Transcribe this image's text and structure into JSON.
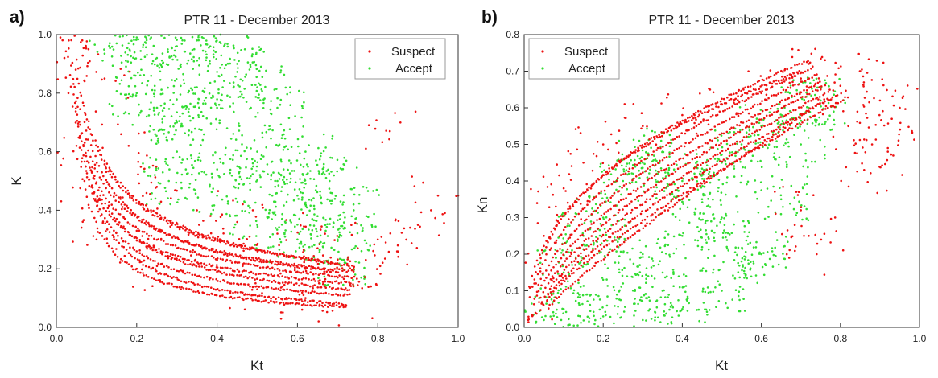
{
  "chart_data": [
    {
      "panel_label": "a)",
      "type": "scatter",
      "title": "PTR 11 - December 2013",
      "xlabel": "Kt",
      "ylabel": "K",
      "xlim": [
        0.0,
        1.0
      ],
      "ylim": [
        0.0,
        1.0
      ],
      "xticks": [
        "0.0",
        "0.2",
        "0.4",
        "0.6",
        "0.8",
        "1.0"
      ],
      "yticks": [
        "0.0",
        "0.2",
        "0.4",
        "0.6",
        "0.8",
        "1.0"
      ],
      "grid": false,
      "legend_position": "top-right",
      "series": [
        {
          "name": "Suspect",
          "color": "#ee1111",
          "points": [
            [
              0.01,
              0.99
            ],
            [
              0.02,
              0.92
            ],
            [
              0.03,
              0.8
            ],
            [
              0.05,
              0.62
            ],
            [
              0.07,
              0.5
            ],
            [
              0.1,
              0.43
            ],
            [
              0.15,
              0.37
            ],
            [
              0.2,
              0.33
            ],
            [
              0.3,
              0.27
            ],
            [
              0.4,
              0.23
            ],
            [
              0.5,
              0.21
            ],
            [
              0.6,
              0.19
            ],
            [
              0.7,
              0.17
            ],
            [
              0.74,
              0.2
            ],
            [
              0.75,
              0.27
            ],
            [
              0.8,
              0.3
            ],
            [
              0.85,
              0.28
            ],
            [
              0.9,
              0.35
            ],
            [
              0.95,
              0.45
            ],
            [
              0.83,
              0.67
            ],
            [
              0.08,
              0.95
            ],
            [
              0.12,
              0.85
            ],
            [
              0.18,
              0.62
            ],
            [
              0.25,
              0.48
            ],
            [
              0.35,
              0.4
            ],
            [
              0.45,
              0.36
            ],
            [
              0.55,
              0.32
            ],
            [
              0.65,
              0.27
            ],
            [
              0.1,
              0.3
            ],
            [
              0.2,
              0.2
            ],
            [
              0.3,
              0.17
            ],
            [
              0.5,
              0.13
            ],
            [
              0.62,
              0.1
            ],
            [
              0.72,
              0.07
            ]
          ],
          "curves": [
            {
              "x0": 0.03,
              "x1": 0.74,
              "y_at_x0": 0.95,
              "y_at_x1": 0.17,
              "p": 0.55
            },
            {
              "x0": 0.03,
              "x1": 0.74,
              "y_at_x0": 0.92,
              "y_at_x1": 0.15,
              "p": 0.62
            },
            {
              "x0": 0.04,
              "x1": 0.73,
              "y_at_x0": 0.9,
              "y_at_x1": 0.13,
              "p": 0.7
            },
            {
              "x0": 0.04,
              "x1": 0.73,
              "y_at_x0": 0.85,
              "y_at_x1": 0.11,
              "p": 0.78
            },
            {
              "x0": 0.05,
              "x1": 0.72,
              "y_at_x0": 0.75,
              "y_at_x1": 0.08,
              "p": 0.85
            },
            {
              "x0": 0.06,
              "x1": 0.72,
              "y_at_x0": 0.55,
              "y_at_x1": 0.07,
              "p": 0.9
            },
            {
              "x0": 0.03,
              "x1": 0.74,
              "y_at_x0": 0.98,
              "y_at_x1": 0.19,
              "p": 0.5
            },
            {
              "x0": 0.05,
              "x1": 0.74,
              "y_at_x0": 0.88,
              "y_at_x1": 0.21,
              "p": 0.45
            },
            {
              "x0": 0.07,
              "x1": 0.7,
              "y_at_x0": 0.7,
              "y_at_x1": 0.19,
              "p": 0.6
            },
            {
              "x0": 0.06,
              "x1": 0.7,
              "y_at_x0": 0.8,
              "y_at_x1": 0.22,
              "p": 0.52
            }
          ]
        },
        {
          "name": "Accept",
          "color": "#33dd33",
          "points": [
            [
              0.15,
              0.97
            ],
            [
              0.2,
              0.99
            ],
            [
              0.25,
              0.92
            ],
            [
              0.3,
              0.96
            ],
            [
              0.35,
              0.98
            ],
            [
              0.2,
              0.8
            ],
            [
              0.25,
              0.75
            ],
            [
              0.3,
              0.7
            ],
            [
              0.35,
              0.82
            ],
            [
              0.4,
              0.75
            ],
            [
              0.45,
              0.55
            ],
            [
              0.5,
              0.6
            ],
            [
              0.55,
              0.5
            ],
            [
              0.6,
              0.45
            ],
            [
              0.65,
              0.38
            ],
            [
              0.7,
              0.3
            ],
            [
              0.72,
              0.22
            ],
            [
              0.4,
              0.45
            ],
            [
              0.5,
              0.35
            ],
            [
              0.6,
              0.3
            ],
            [
              0.3,
              0.6
            ],
            [
              0.28,
              0.5
            ],
            [
              0.55,
              0.75
            ],
            [
              0.5,
              0.82
            ],
            [
              0.45,
              0.9
            ],
            [
              0.42,
              0.97
            ],
            [
              0.62,
              0.6
            ],
            [
              0.68,
              0.5
            ],
            [
              0.74,
              0.4
            ]
          ]
        }
      ]
    },
    {
      "panel_label": "b)",
      "type": "scatter",
      "title": "PTR 11 - December 2013",
      "xlabel": "Kt",
      "ylabel": "Kn",
      "xlim": [
        0.0,
        1.0
      ],
      "ylim": [
        0.0,
        0.8
      ],
      "xticks": [
        "0.0",
        "0.2",
        "0.4",
        "0.6",
        "0.8",
        "1.0"
      ],
      "yticks": [
        "0.0",
        "0.1",
        "0.2",
        "0.3",
        "0.4",
        "0.5",
        "0.6",
        "0.7",
        "0.8"
      ],
      "grid": false,
      "legend_position": "top-left",
      "series": [
        {
          "name": "Suspect",
          "color": "#ee1111",
          "points": [
            [
              0.01,
              0.02
            ],
            [
              0.03,
              0.12
            ],
            [
              0.05,
              0.25
            ],
            [
              0.08,
              0.33
            ],
            [
              0.1,
              0.38
            ],
            [
              0.15,
              0.45
            ],
            [
              0.2,
              0.5
            ],
            [
              0.3,
              0.55
            ],
            [
              0.4,
              0.58
            ],
            [
              0.5,
              0.61
            ],
            [
              0.6,
              0.64
            ],
            [
              0.7,
              0.68
            ],
            [
              0.72,
              0.72
            ],
            [
              0.75,
              0.65
            ],
            [
              0.8,
              0.66
            ],
            [
              0.85,
              0.7
            ],
            [
              0.9,
              0.62
            ],
            [
              0.93,
              0.57
            ],
            [
              0.95,
              0.6
            ],
            [
              0.88,
              0.5
            ],
            [
              0.92,
              0.48
            ],
            [
              0.82,
              0.55
            ],
            [
              0.86,
              0.43
            ],
            [
              0.72,
              0.25
            ],
            [
              0.74,
              0.2
            ],
            [
              0.7,
              0.32
            ]
          ],
          "curves": [
            {
              "x0": 0.01,
              "x1": 0.72,
              "y_at_x0": 0.03,
              "y_at_x1": 0.73,
              "p": 0.45
            },
            {
              "x0": 0.01,
              "x1": 0.73,
              "y_at_x0": 0.02,
              "y_at_x1": 0.71,
              "p": 0.5
            },
            {
              "x0": 0.02,
              "x1": 0.74,
              "y_at_x0": 0.03,
              "y_at_x1": 0.69,
              "p": 0.55
            },
            {
              "x0": 0.02,
              "x1": 0.75,
              "y_at_x0": 0.03,
              "y_at_x1": 0.67,
              "p": 0.6
            },
            {
              "x0": 0.03,
              "x1": 0.76,
              "y_at_x0": 0.04,
              "y_at_x1": 0.66,
              "p": 0.65
            },
            {
              "x0": 0.04,
              "x1": 0.78,
              "y_at_x0": 0.05,
              "y_at_x1": 0.65,
              "p": 0.7
            },
            {
              "x0": 0.05,
              "x1": 0.8,
              "y_at_x0": 0.06,
              "y_at_x1": 0.64,
              "p": 0.75
            },
            {
              "x0": 0.05,
              "x1": 0.82,
              "y_at_x0": 0.06,
              "y_at_x1": 0.63,
              "p": 0.8
            },
            {
              "x0": 0.06,
              "x1": 0.76,
              "y_at_x0": 0.05,
              "y_at_x1": 0.62,
              "p": 0.88
            },
            {
              "x0": 0.02,
              "x1": 0.7,
              "y_at_x0": 0.03,
              "y_at_x1": 0.7,
              "p": 0.42
            }
          ]
        },
        {
          "name": "Accept",
          "color": "#33dd33",
          "points": [
            [
              0.05,
              0.02
            ],
            [
              0.1,
              0.05
            ],
            [
              0.2,
              0.03
            ],
            [
              0.3,
              0.02
            ],
            [
              0.4,
              0.05
            ],
            [
              0.5,
              0.1
            ],
            [
              0.6,
              0.2
            ],
            [
              0.65,
              0.35
            ],
            [
              0.7,
              0.5
            ],
            [
              0.72,
              0.6
            ],
            [
              0.75,
              0.62
            ],
            [
              0.1,
              0.15
            ],
            [
              0.15,
              0.25
            ],
            [
              0.2,
              0.3
            ],
            [
              0.25,
              0.4
            ],
            [
              0.3,
              0.45
            ],
            [
              0.35,
              0.48
            ],
            [
              0.4,
              0.4
            ],
            [
              0.45,
              0.35
            ],
            [
              0.5,
              0.45
            ],
            [
              0.55,
              0.5
            ],
            [
              0.6,
              0.55
            ],
            [
              0.3,
              0.2
            ],
            [
              0.4,
              0.25
            ],
            [
              0.5,
              0.3
            ],
            [
              0.35,
              0.1
            ],
            [
              0.25,
              0.12
            ],
            [
              0.55,
              0.18
            ]
          ]
        }
      ]
    }
  ]
}
